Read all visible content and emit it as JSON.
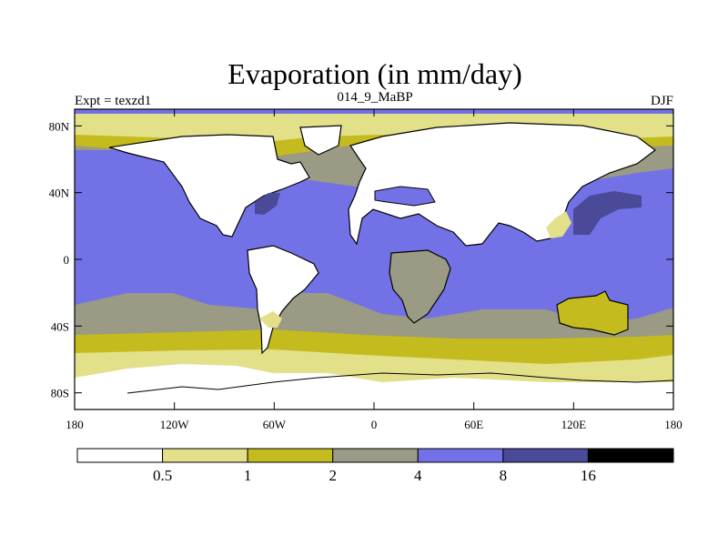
{
  "chart_data": {
    "type": "heatmap",
    "title": "Evaporation (in mm/day)",
    "left_label": "Expt = texzd1",
    "center_label": "014_9_MaBP",
    "right_label": "DJF",
    "x_range": [
      -180,
      180
    ],
    "y_range": [
      -90,
      90
    ],
    "x_ticks": [
      {
        "value": -180,
        "label": "180"
      },
      {
        "value": -120,
        "label": "120W"
      },
      {
        "value": -60,
        "label": "60W"
      },
      {
        "value": 0,
        "label": "0"
      },
      {
        "value": 60,
        "label": "60E"
      },
      {
        "value": 120,
        "label": "120E"
      },
      {
        "value": 180,
        "label": "180"
      }
    ],
    "y_ticks": [
      {
        "value": 80,
        "label": "80N"
      },
      {
        "value": 40,
        "label": "40N"
      },
      {
        "value": 0,
        "label": "0"
      },
      {
        "value": -40,
        "label": "40S"
      },
      {
        "value": -80,
        "label": "80S"
      }
    ],
    "colorbar": {
      "levels": [
        "0.5",
        "1",
        "2",
        "4",
        "8",
        "16"
      ],
      "colors": [
        "#ffffff",
        "#e3e08a",
        "#c4bb1e",
        "#9a9a85",
        "#7272e6",
        "#4a4a98",
        "#000000"
      ]
    }
  }
}
